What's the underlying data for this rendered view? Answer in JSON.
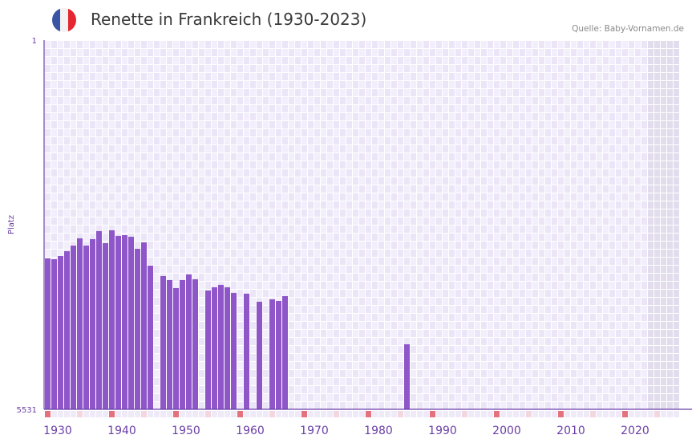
{
  "header": {
    "title": "Renette in Frankreich (1930-2023)",
    "source": "Quelle: Baby-Vornamen.de",
    "flag_icon": "france-flag-icon",
    "flag_colors": [
      "#3a55a4",
      "#f2f2f2",
      "#e52630"
    ]
  },
  "colors": {
    "bar": "#8e56c8",
    "axis": "#6b3fa6",
    "cell_a": "#f2eefb",
    "cell_b": "#ebe5f7",
    "future": "#e2dcec",
    "marker_decade": "#e4717c",
    "marker_half": "#f4d6df",
    "marker": "#efeaf7"
  },
  "chart_data": {
    "type": "bar",
    "title": "Renette in Frankreich (1930-2023)",
    "xlabel": "",
    "ylabel": "Platz",
    "ylim": [
      1,
      5531
    ],
    "y_inverted": true,
    "y_ticks": [
      "1",
      "5531"
    ],
    "x_range": [
      1930,
      2028
    ],
    "x_ticks": [
      "1930",
      "1940",
      "1950",
      "1960",
      "1970",
      "1980",
      "1990",
      "2000",
      "2010",
      "2020"
    ],
    "future_from": 2024,
    "grid": true,
    "x": [
      1930,
      1931,
      1932,
      1933,
      1934,
      1935,
      1936,
      1937,
      1938,
      1939,
      1940,
      1941,
      1942,
      1943,
      1944,
      1945,
      1946,
      1947,
      1948,
      1949,
      1950,
      1951,
      1952,
      1953,
      1954,
      1955,
      1956,
      1957,
      1958,
      1959,
      1960,
      1961,
      1962,
      1963,
      1964,
      1965,
      1966,
      1967,
      1986
    ],
    "values": [
      3271,
      3283,
      3235,
      3163,
      3079,
      2970,
      3079,
      2982,
      2862,
      3042,
      2850,
      2934,
      2922,
      2946,
      3127,
      3031,
      3379,
      null,
      3535,
      3595,
      3715,
      3595,
      3511,
      3583,
      null,
      3751,
      3703,
      3667,
      3703,
      3787,
      null,
      3799,
      null,
      3920,
      null,
      3884,
      3908,
      3836,
      4557
    ]
  }
}
